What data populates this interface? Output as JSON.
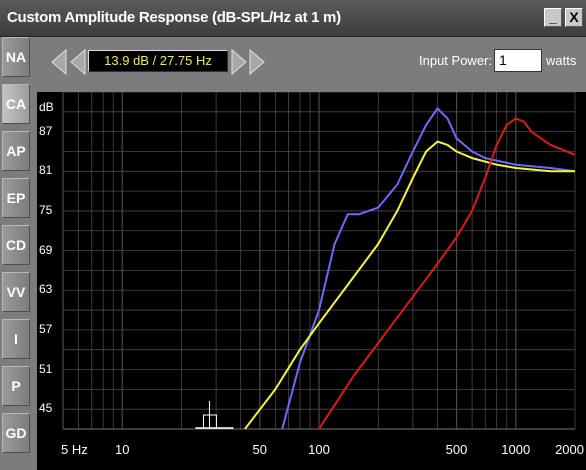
{
  "window": {
    "title": "Custom Amplitude Response (dB-SPL/Hz at 1 m)",
    "minimize_label": "_",
    "close_label": "X"
  },
  "sidebar": {
    "tabs": [
      {
        "label": "NA",
        "active": false
      },
      {
        "label": "CA",
        "active": true
      },
      {
        "label": "AP",
        "active": false
      },
      {
        "label": "EP",
        "active": false
      },
      {
        "label": "CD",
        "active": false
      },
      {
        "label": "VV",
        "active": false
      },
      {
        "label": "I",
        "active": false
      },
      {
        "label": "P",
        "active": false
      },
      {
        "label": "GD",
        "active": false
      }
    ]
  },
  "toolbar": {
    "readout": "13.9 dB / 27.75 Hz",
    "input_power_label": "Input Power:",
    "input_power_value": "1",
    "watts_label": "watts"
  },
  "colors": {
    "blue_curve": "#6a6aff",
    "yellow_curve": "#f5f53a",
    "red_curve": "#e01818",
    "grid": "#4a4a4a",
    "background": "#000000"
  },
  "chart_data": {
    "type": "line",
    "title": "Custom Amplitude Response (dB-SPL/Hz at 1 m)",
    "ylabel": "dB",
    "xscale": "log",
    "xlim": [
      5,
      2000
    ],
    "ylim": [
      42,
      93
    ],
    "y_ticks": [
      45,
      51,
      57,
      63,
      69,
      75,
      81,
      87
    ],
    "x_ticks": [
      {
        "value": 5,
        "label": "5 Hz"
      },
      {
        "value": 10,
        "label": "10"
      },
      {
        "value": 50,
        "label": "50"
      },
      {
        "value": 100,
        "label": "100"
      },
      {
        "value": 500,
        "label": "500"
      },
      {
        "value": 1000,
        "label": "1000"
      },
      {
        "value": 2000,
        "label": "2000"
      }
    ],
    "grid": true,
    "series": [
      {
        "color": "#6a6aff",
        "x": [
          65,
          80,
          100,
          120,
          140,
          160,
          200,
          250,
          300,
          350,
          400,
          450,
          500,
          600,
          700,
          1000,
          1500,
          2000
        ],
        "y": [
          42,
          52,
          60,
          70,
          74.5,
          74.5,
          75.5,
          79,
          84,
          88,
          90.5,
          89,
          86,
          84,
          83,
          82,
          81.5,
          81
        ]
      },
      {
        "color": "#f5f53a",
        "x": [
          42,
          60,
          80,
          100,
          150,
          200,
          250,
          300,
          350,
          400,
          450,
          500,
          600,
          800,
          1000,
          1500,
          2000
        ],
        "y": [
          42,
          48,
          54,
          58,
          65,
          70,
          75,
          80,
          84,
          85.5,
          85,
          84,
          83,
          82,
          81.5,
          81,
          81
        ]
      },
      {
        "color": "#e01818",
        "x": [
          100,
          150,
          200,
          300,
          400,
          500,
          600,
          700,
          800,
          900,
          1000,
          1100,
          1200,
          1500,
          2000
        ],
        "y": [
          42,
          50,
          55,
          62,
          67,
          71,
          75,
          80,
          85,
          88,
          89,
          88.5,
          87,
          85,
          83.5
        ]
      }
    ],
    "marker": {
      "x": 27.75,
      "y": 42
    }
  }
}
